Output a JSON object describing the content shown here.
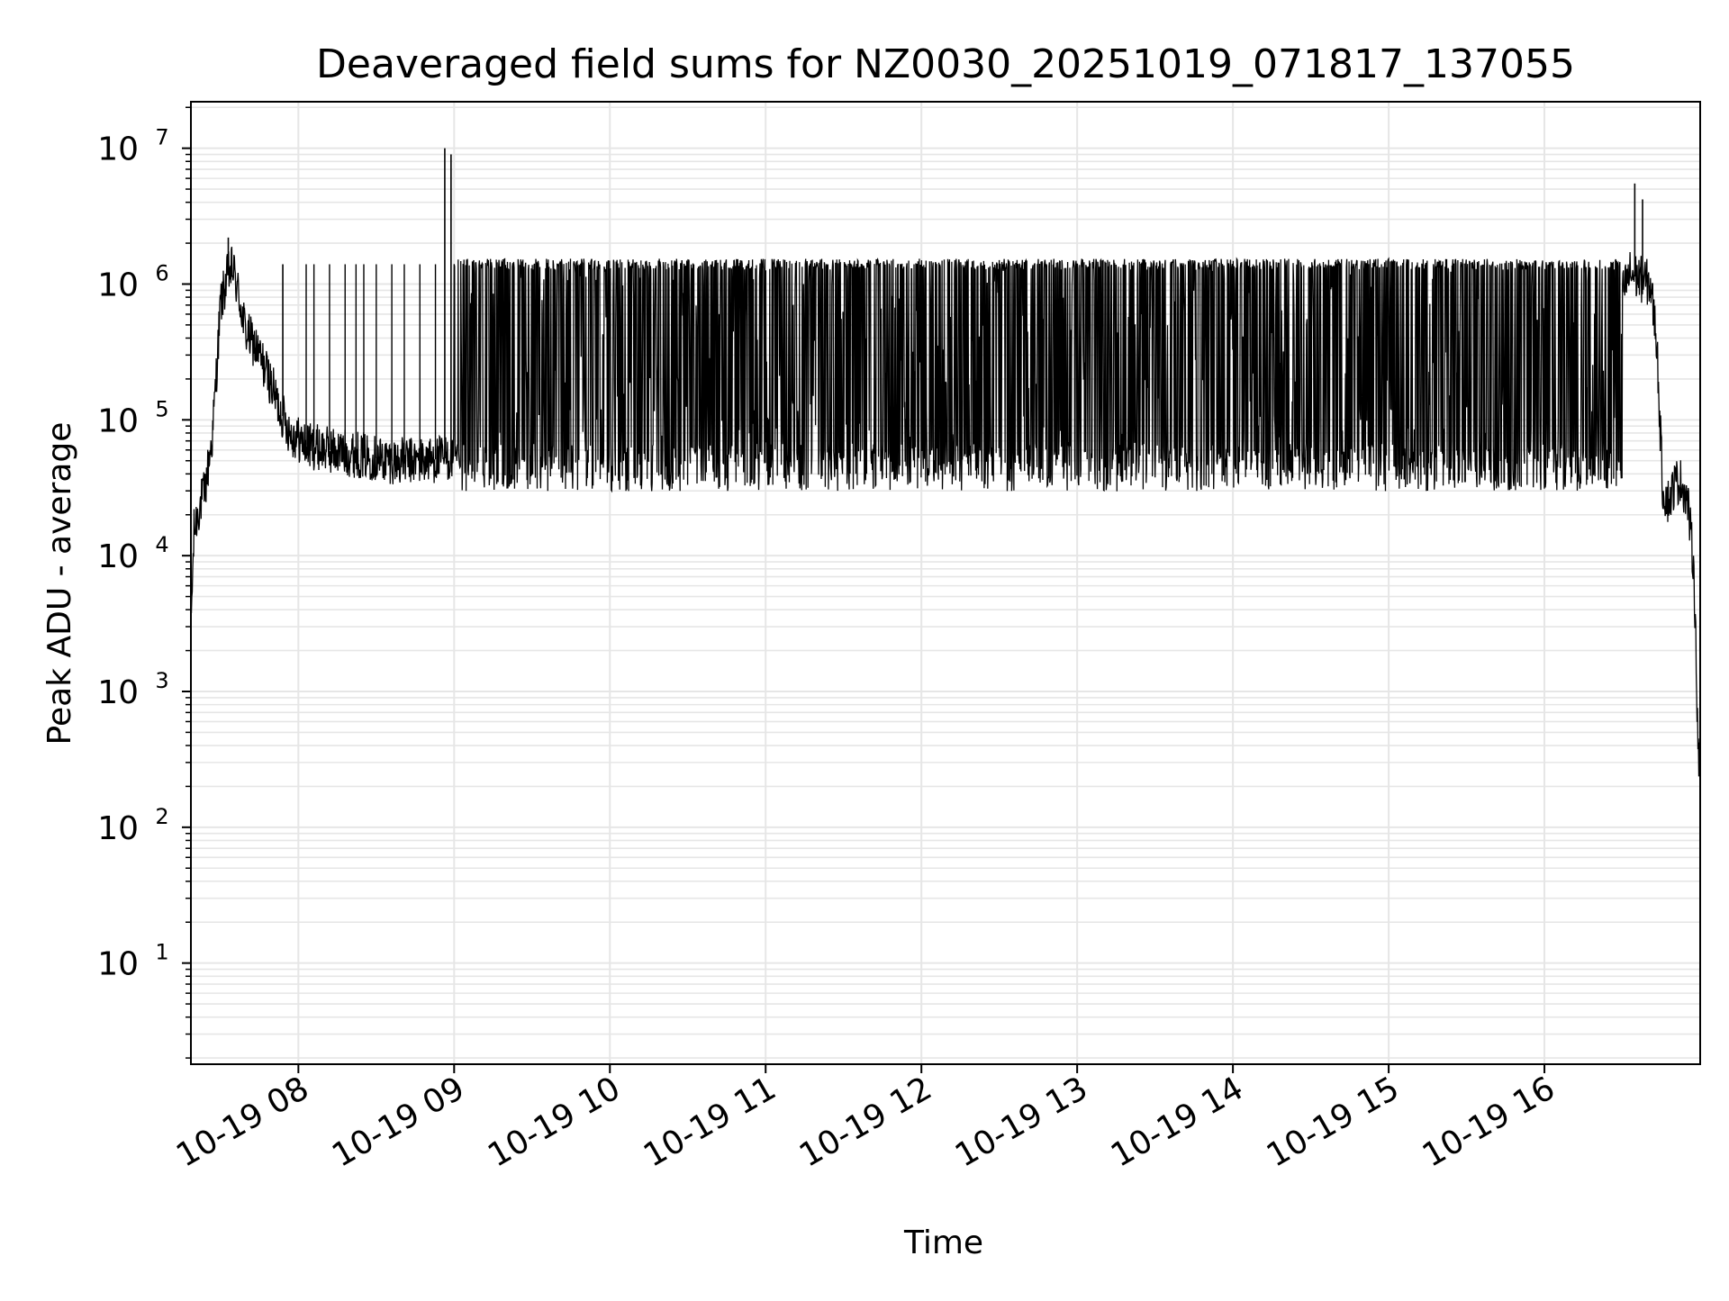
{
  "chart_data": {
    "type": "line",
    "title": "Deaveraged field sums for NZ0030_20251019_071817_137055",
    "xlabel": "Time",
    "ylabel": "Peak ADU - average",
    "yscale": "log",
    "ylim": [
      1.8,
      22000000
    ],
    "xlim_hours": [
      7.31,
      17.0
    ],
    "grid": true,
    "line_color": "#000000",
    "grid_color": "#e6e6e6",
    "x_ticks": [
      {
        "label": "10-19 08",
        "hour": 8
      },
      {
        "label": "10-19 09",
        "hour": 9
      },
      {
        "label": "10-19 10",
        "hour": 10
      },
      {
        "label": "10-19 11",
        "hour": 11
      },
      {
        "label": "10-19 12",
        "hour": 12
      },
      {
        "label": "10-19 13",
        "hour": 13
      },
      {
        "label": "10-19 14",
        "hour": 14
      },
      {
        "label": "10-19 15",
        "hour": 15
      },
      {
        "label": "10-19 16",
        "hour": 16
      }
    ],
    "y_ticks": [
      {
        "base": "10",
        "exp": "1",
        "value": 10
      },
      {
        "base": "10",
        "exp": "2",
        "value": 100
      },
      {
        "base": "10",
        "exp": "3",
        "value": 1000
      },
      {
        "base": "10",
        "exp": "4",
        "value": 10000
      },
      {
        "base": "10",
        "exp": "5",
        "value": 100000
      },
      {
        "base": "10",
        "exp": "6",
        "value": 1000000
      },
      {
        "base": "10",
        "exp": "7",
        "value": 10000000
      }
    ],
    "series": [
      {
        "name": "Peak ADU - average",
        "envelope": {
          "x_hours": [
            7.31,
            7.33,
            7.36,
            7.4,
            7.45,
            7.5,
            7.55,
            7.58,
            7.62,
            7.66,
            7.72,
            7.8,
            7.88,
            7.95,
            8.05,
            8.2,
            8.4,
            8.6,
            8.8,
            8.94,
            9.1,
            9.5,
            10.0,
            10.5,
            11.0,
            11.5,
            12.0,
            12.5,
            13.0,
            13.5,
            14.0,
            14.5,
            15.0,
            15.5,
            15.95,
            16.2,
            16.4,
            16.55,
            16.68,
            16.72,
            16.76,
            16.8,
            16.84,
            16.88,
            16.92,
            16.96,
            16.99
          ],
          "values": [
            3000,
            15000,
            22000,
            30000,
            80000,
            700000,
            1200000,
            1300000,
            800000,
            450000,
            350000,
            220000,
            120000,
            80000,
            65000,
            60000,
            55000,
            50000,
            50000,
            52000,
            55000,
            60000,
            60000,
            60000,
            60000,
            60000,
            60000,
            60000,
            60000,
            60000,
            60000,
            60000,
            60000,
            70000,
            100000,
            200000,
            450000,
            1200000,
            1000000,
            400000,
            30000,
            25000,
            35000,
            35000,
            25000,
            8000,
            300
          ]
        },
        "bursts": [
          {
            "from_hour": 9.0,
            "to_hour": 16.5,
            "peak": 1400000,
            "floor": 35000
          }
        ],
        "spikes": [
          {
            "hour": 7.55,
            "value": 2200000
          },
          {
            "hour": 7.9,
            "value": 1400000
          },
          {
            "hour": 8.94,
            "value": 10000000
          },
          {
            "hour": 8.98,
            "value": 9000000
          },
          {
            "hour": 16.58,
            "value": 5500000
          },
          {
            "hour": 16.63,
            "value": 4200000
          }
        ],
        "early_spikes_hours": [
          8.05,
          8.1,
          8.2,
          8.3,
          8.37,
          8.42,
          8.5,
          8.6,
          8.68,
          8.78,
          8.88
        ]
      }
    ]
  }
}
